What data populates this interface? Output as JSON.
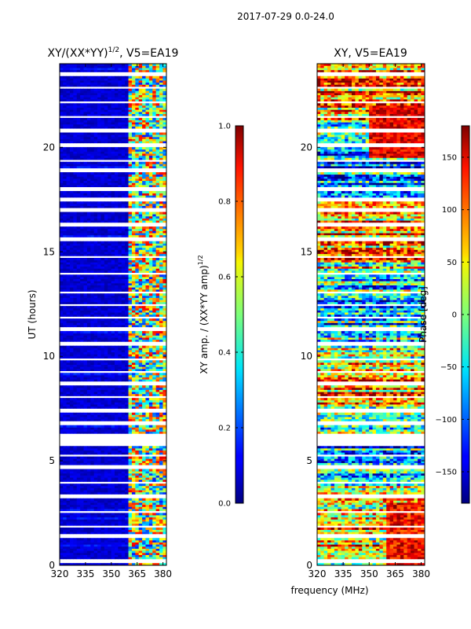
{
  "figure": {
    "suptitle": "2017-07-29 0.0-24.0",
    "xlabel": "frequency (MHz)"
  },
  "chart_data": [
    {
      "type": "heatmap",
      "title": "XY/(XX*YY)^1/2, V5=EA19",
      "title_main": "XY/(XX*YY)",
      "title_sup": "1/2",
      "title_rest": ", V5=EA19",
      "xlabel": "frequency (MHz)",
      "ylabel": "UT (hours)",
      "x_range": [
        320,
        382
      ],
      "y_range": [
        0,
        24
      ],
      "x_ticks": [
        320,
        335,
        350,
        365,
        380
      ],
      "y_ticks": [
        0,
        5,
        10,
        15,
        20
      ],
      "colormap": "jet",
      "colorbar": {
        "label_main": "XY amp. / (XX*YY amp)",
        "label_sup": "1/2",
        "range": [
          0.0,
          1.0
        ],
        "ticks": [
          "0.0",
          "0.2",
          "0.4",
          "0.6",
          "0.8",
          "1.0"
        ],
        "tick_values": [
          0.0,
          0.2,
          0.4,
          0.6,
          0.8,
          1.0
        ]
      },
      "data_gaps_hours": [
        [
          0.15,
          0.3
        ],
        [
          1.35,
          1.45
        ],
        [
          1.8,
          1.9
        ],
        [
          2.5,
          2.6
        ],
        [
          3.2,
          3.35
        ],
        [
          3.9,
          4.05
        ],
        [
          4.6,
          4.75
        ],
        [
          5.25,
          5.35
        ],
        [
          5.7,
          6.3
        ],
        [
          6.75,
          6.85
        ],
        [
          7.3,
          7.45
        ],
        [
          7.95,
          8.05
        ],
        [
          8.6,
          8.75
        ],
        [
          9.2,
          9.3
        ],
        [
          9.85,
          9.95
        ],
        [
          10.55,
          10.7
        ],
        [
          11.2,
          11.35
        ],
        [
          11.8,
          11.9
        ],
        [
          12.35,
          12.5
        ],
        [
          13.0,
          13.1
        ],
        [
          13.9,
          14.0
        ],
        [
          14.75,
          14.85
        ],
        [
          15.55,
          15.7
        ],
        [
          16.2,
          16.35
        ],
        [
          16.95,
          17.05
        ],
        [
          17.45,
          17.6
        ],
        [
          17.95,
          18.05
        ],
        [
          18.35,
          18.45
        ],
        [
          18.8,
          18.95
        ],
        [
          19.3,
          19.4
        ],
        [
          20.05,
          20.15
        ],
        [
          20.75,
          20.85
        ],
        [
          21.4,
          21.5
        ],
        [
          22.1,
          22.2
        ],
        [
          22.8,
          22.9
        ],
        [
          23.45,
          23.55
        ]
      ]
    },
    {
      "type": "heatmap",
      "title": "XY, V5=EA19",
      "xlabel": "frequency (MHz)",
      "ylabel": "",
      "x_range": [
        320,
        382
      ],
      "y_range": [
        0,
        24
      ],
      "x_ticks": [
        320,
        335,
        350,
        365,
        380
      ],
      "y_ticks": [
        0,
        5,
        10,
        15,
        20
      ],
      "colormap": "jet",
      "colorbar": {
        "label": "Phase [deg]",
        "range": [
          -180,
          180
        ],
        "ticks": [
          "−150",
          "−100",
          "−50",
          "0",
          "50",
          "100",
          "150"
        ],
        "tick_values": [
          -150,
          -100,
          -50,
          0,
          50,
          100,
          150
        ]
      },
      "data_gaps_hours": [
        [
          0.15,
          0.3
        ],
        [
          1.35,
          1.45
        ],
        [
          1.8,
          1.9
        ],
        [
          2.5,
          2.6
        ],
        [
          3.2,
          3.35
        ],
        [
          3.9,
          4.05
        ],
        [
          4.6,
          4.75
        ],
        [
          5.25,
          5.35
        ],
        [
          5.7,
          6.3
        ],
        [
          6.75,
          6.85
        ],
        [
          7.3,
          7.45
        ],
        [
          7.95,
          8.05
        ],
        [
          8.6,
          8.75
        ],
        [
          9.2,
          9.3
        ],
        [
          9.85,
          9.95
        ],
        [
          10.55,
          10.7
        ],
        [
          11.2,
          11.35
        ],
        [
          11.8,
          11.9
        ],
        [
          12.35,
          12.5
        ],
        [
          13.0,
          13.1
        ],
        [
          13.9,
          14.0
        ],
        [
          14.75,
          14.85
        ],
        [
          15.55,
          15.7
        ],
        [
          16.2,
          16.35
        ],
        [
          16.95,
          17.05
        ],
        [
          17.45,
          17.6
        ],
        [
          17.95,
          18.05
        ],
        [
          18.35,
          18.45
        ],
        [
          18.8,
          18.95
        ],
        [
          19.3,
          19.4
        ],
        [
          20.05,
          20.15
        ],
        [
          20.75,
          20.85
        ],
        [
          21.4,
          21.5
        ],
        [
          22.1,
          22.2
        ],
        [
          22.8,
          22.9
        ],
        [
          23.45,
          23.55
        ]
      ]
    }
  ]
}
